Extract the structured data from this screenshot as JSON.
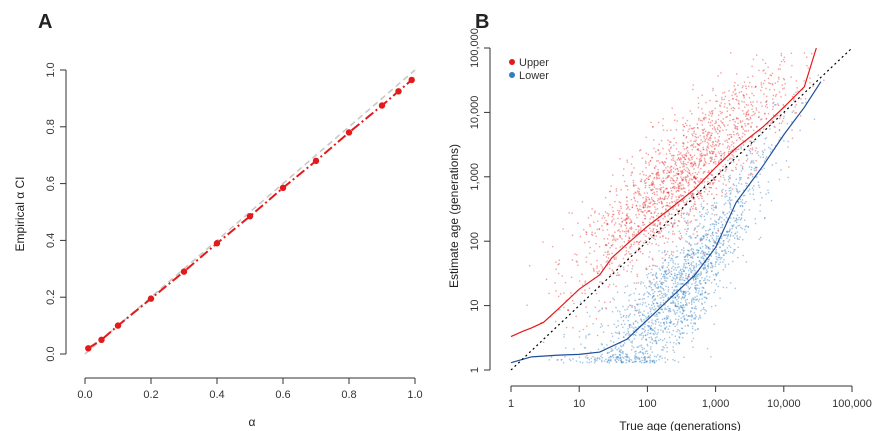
{
  "chart_data": [
    {
      "panel": "A",
      "type": "line",
      "xlabel": "α",
      "ylabel": "Empirical α CI",
      "xlim": [
        0,
        1
      ],
      "ylim": [
        0,
        1
      ],
      "x_ticks": [
        "0.0",
        "0.2",
        "0.4",
        "0.6",
        "0.8",
        "1.0"
      ],
      "y_ticks": [
        "0.0",
        "0.2",
        "0.4",
        "0.6",
        "0.8",
        "1.0"
      ],
      "reference_line": {
        "from": [
          0,
          0
        ],
        "to": [
          1,
          1
        ],
        "style": "dashed",
        "color": "#c8c8c8"
      },
      "series": [
        {
          "color": "#e31a1c",
          "style": "dash-dot",
          "x": [
            0.01,
            0.05,
            0.1,
            0.2,
            0.3,
            0.4,
            0.5,
            0.6,
            0.7,
            0.8,
            0.9,
            0.95,
            0.99
          ],
          "y": [
            0.02,
            0.05,
            0.1,
            0.195,
            0.29,
            0.39,
            0.485,
            0.585,
            0.68,
            0.78,
            0.875,
            0.925,
            0.965
          ]
        }
      ]
    },
    {
      "panel": "B",
      "type": "scatter",
      "xlabel": "True age (generations)",
      "ylabel": "Estimate age (generations)",
      "x_scale": "log",
      "y_scale": "log",
      "xlim": [
        1,
        100000
      ],
      "ylim": [
        1,
        100000
      ],
      "x_ticks": [
        "1",
        "10",
        "100",
        "1,000",
        "10,000",
        "100,000"
      ],
      "y_ticks": [
        "1",
        "10",
        "100",
        "1,000",
        "10,000",
        "100,000"
      ],
      "legend": {
        "position": "top-left",
        "entries": [
          {
            "label": "Upper",
            "color": "#e31a1c"
          },
          {
            "label": "Lower",
            "color": "#2f7fc1"
          }
        ]
      },
      "reference_line": {
        "from": [
          1,
          1
        ],
        "to": [
          100000,
          100000
        ],
        "style": "dotted",
        "color": "#000000"
      },
      "series": [
        {
          "name": "Upper",
          "color": "#e31a1c",
          "line_color": "#e31a1c",
          "median_line": {
            "x": [
              1,
              1.5,
              2,
              3,
              5,
              10,
              20,
              30,
              50,
              100,
              200,
              500,
              1000,
              2000,
              5000,
              10000,
              20000,
              30000
            ],
            "y": [
              3.3,
              4,
              4.5,
              5.5,
              9,
              18,
              30,
              55,
              90,
              170,
              300,
              650,
              1400,
              2800,
              6000,
              12000,
              25000,
              100000
            ]
          }
        },
        {
          "name": "Lower",
          "color": "#2f7fc1",
          "line_color": "#1f4e9a",
          "median_line": {
            "x": [
              1,
              2,
              5,
              10,
              20,
              50,
              100,
              200,
              500,
              1000,
              2000,
              5000,
              10000,
              20000,
              35000
            ],
            "y": [
              1.3,
              1.6,
              1.7,
              1.75,
              1.9,
              3,
              6,
              12,
              30,
              80,
              400,
              1500,
              4500,
              12000,
              30000
            ]
          }
        }
      ]
    }
  ],
  "panels": {
    "a": {
      "label": "A"
    },
    "b": {
      "label": "B"
    }
  }
}
